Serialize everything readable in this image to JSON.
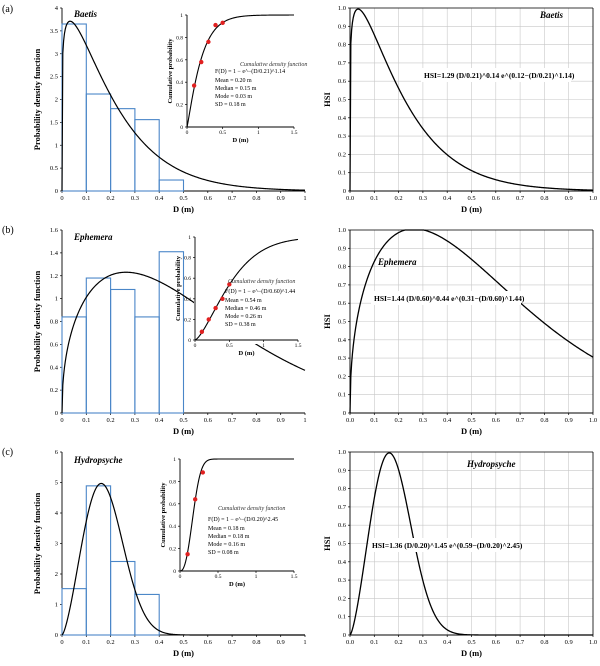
{
  "panels": [
    {
      "label": "(a)",
      "species": "Baetis",
      "pdf": {
        "ylabel": "Probability density function",
        "xlabel": "D (m)",
        "xlim": [
          0,
          1
        ],
        "ylim": [
          0,
          4
        ],
        "xticks": [
          "0",
          "0.1",
          "0.2",
          "0.3",
          "0.4",
          "0.5",
          "0.6",
          "0.7",
          "0.8",
          "0.9",
          "1"
        ],
        "yticks": [
          "0",
          "0.5",
          "1",
          "1.5",
          "2",
          "2.5",
          "3",
          "3.5",
          "4"
        ]
      },
      "inset": {
        "ylabel": "Cumulative probability",
        "xlabel": "D (m)",
        "xlim": [
          0,
          1.5
        ],
        "ylim": [
          0,
          1
        ],
        "xticks": [
          "0",
          "0.5",
          "1",
          "1.5"
        ],
        "yticks": [
          "0",
          "0.2",
          "0.4",
          "0.6",
          "0.8",
          "1"
        ],
        "title": "Cumulative density function",
        "formula": "F(D) = 1 − e^−(D/0.21)^1.14",
        "stats": [
          "Mean = 0.20 m",
          "Median = 0.15 m",
          "Mode = 0.03 m",
          "SD = 0.18 m"
        ]
      },
      "hsi": {
        "ylabel": "HSI",
        "xlabel": "D (m)",
        "xlim": [
          0,
          1
        ],
        "ylim": [
          0,
          1
        ],
        "xticks": [
          "0.0",
          "0.1",
          "0.2",
          "0.3",
          "0.4",
          "0.5",
          "0.6",
          "0.7",
          "0.8",
          "0.9",
          "1.0"
        ],
        "yticks": [
          "0",
          "0.1",
          "0.2",
          "0.3",
          "0.4",
          "0.5",
          "0.6",
          "0.7",
          "0.8",
          "0.9",
          "1.0"
        ],
        "equation": "HSI=1.29 (D/0.21)^0.14 e^(0.12−(D/0.21)^1.14)"
      }
    },
    {
      "label": "(b)",
      "species": "Ephemera",
      "pdf": {
        "ylabel": "Probability density function",
        "xlabel": "D (m)",
        "xlim": [
          0,
          1
        ],
        "ylim": [
          0,
          1.6
        ],
        "xticks": [
          "0",
          "0.1",
          "0.2",
          "0.3",
          "0.4",
          "0.5",
          "0.6",
          "0.7",
          "0.8",
          "0.9",
          "1"
        ],
        "yticks": [
          "0",
          "0.2",
          "0.4",
          "0.6",
          "0.8",
          "1",
          "1.2",
          "1.4",
          "1.6"
        ]
      },
      "inset": {
        "ylabel": "Cumulative probability",
        "xlabel": "D (m)",
        "xlim": [
          0,
          1.5
        ],
        "ylim": [
          0,
          1
        ],
        "xticks": [
          "0",
          "0.5",
          "1",
          "1.5"
        ],
        "yticks": [
          "0",
          "0.2",
          "0.4",
          "0.6",
          "0.8",
          "1"
        ],
        "title": "Cumulative density function",
        "formula": "F(D) = 1 − e^−(D/0.60)^1.44",
        "stats": [
          "Mean = 0.54 m",
          "Median = 0.46 m",
          "Mode = 0.26 m",
          "SD = 0.38 m"
        ]
      },
      "hsi": {
        "ylabel": "HSI",
        "xlabel": "D (m)",
        "xlim": [
          0,
          1
        ],
        "ylim": [
          0,
          1
        ],
        "xticks": [
          "0.0",
          "0.1",
          "0.2",
          "0.3",
          "0.4",
          "0.5",
          "0.6",
          "0.7",
          "0.8",
          "0.9",
          "1.0"
        ],
        "yticks": [
          "0",
          "0.1",
          "0.2",
          "0.3",
          "0.4",
          "0.5",
          "0.6",
          "0.7",
          "0.8",
          "0.9",
          "1.0"
        ],
        "equation": "HSI=1.44 (D/0.60)^0.44 e^(0.31−(D/0.60)^1.44)"
      }
    },
    {
      "label": "(c)",
      "species": "Hydropsyche",
      "pdf": {
        "ylabel": "Probability density function",
        "xlabel": "D (m)",
        "xlim": [
          0,
          1
        ],
        "ylim": [
          0,
          6
        ],
        "xticks": [
          "0",
          "0.1",
          "0.2",
          "0.3",
          "0.4",
          "0.5",
          "0.6",
          "0.7",
          "0.8",
          "0.9",
          "1"
        ],
        "yticks": [
          "0",
          "1",
          "2",
          "3",
          "4",
          "5",
          "6"
        ]
      },
      "inset": {
        "ylabel": "Cumulative probability",
        "xlabel": "D (m)",
        "xlim": [
          0,
          1.5
        ],
        "ylim": [
          0,
          1
        ],
        "xticks": [
          "0",
          "0.5",
          "1",
          "1.5"
        ],
        "yticks": [
          "0",
          "0.2",
          "0.4",
          "0.6",
          "0.8",
          "1"
        ],
        "title": "Cumulative density function",
        "formula": "F(D) = 1 − e^−(D/0.20)^2.45",
        "stats": [
          "Mean = 0.18 m",
          "Median = 0.18 m",
          "Mode = 0.16 m",
          "SD = 0.08 m"
        ]
      },
      "hsi": {
        "ylabel": "HSI",
        "xlabel": "D (m)",
        "xlim": [
          0,
          1
        ],
        "ylim": [
          0,
          1
        ],
        "xticks": [
          "0.0",
          "0.1",
          "0.2",
          "0.3",
          "0.4",
          "0.5",
          "0.6",
          "0.7",
          "0.8",
          "0.9",
          "1.0"
        ],
        "yticks": [
          "0",
          "0.1",
          "0.2",
          "0.3",
          "0.4",
          "0.5",
          "0.6",
          "0.7",
          "0.8",
          "0.9",
          "1.0"
        ],
        "equation": "HSI=1.36 (D/0.20)^1.45 e^(0.59−(D/0.20)^2.45)"
      }
    }
  ],
  "chart_data": [
    {
      "type": "bar",
      "title": "Baetis",
      "xlabel": "D (m)",
      "ylabel": "Probability density function",
      "xlim": [
        0,
        1
      ],
      "ylim": [
        0,
        4
      ],
      "bins": [
        [
          0,
          0.1
        ],
        [
          0.1,
          0.2
        ],
        [
          0.2,
          0.3
        ],
        [
          0.3,
          0.4
        ],
        [
          0.4,
          0.5
        ]
      ],
      "values": [
        3.65,
        2.12,
        1.8,
        1.56,
        0.24
      ],
      "fit": {
        "distribution": "Weibull",
        "scale": 0.21,
        "shape": 1.14
      },
      "grid": false
    },
    {
      "type": "scatter",
      "title": "Cumulative density function",
      "xlabel": "D (m)",
      "ylabel": "Cumulative probability",
      "xlim": [
        0,
        1.5
      ],
      "ylim": [
        0,
        1
      ],
      "x": [
        0.1,
        0.2,
        0.3,
        0.4,
        0.5
      ],
      "y": [
        0.37,
        0.58,
        0.76,
        0.91,
        0.93
      ],
      "fit": {
        "distribution": "Weibull",
        "scale": 0.21,
        "shape": 1.14
      },
      "grid": false
    },
    {
      "type": "line",
      "title": "Baetis",
      "xlabel": "D (m)",
      "ylabel": "HSI",
      "xlim": [
        0,
        1
      ],
      "ylim": [
        0,
        1
      ],
      "function": {
        "a": 1.29,
        "scale": 0.21,
        "p": 0.14,
        "c": 0.12,
        "q": 1.14
      },
      "grid": true
    },
    {
      "type": "bar",
      "title": "Ephemera",
      "xlabel": "D (m)",
      "ylabel": "Probability density function",
      "xlim": [
        0,
        1
      ],
      "ylim": [
        0,
        1.6
      ],
      "bins": [
        [
          0,
          0.1
        ],
        [
          0.1,
          0.2
        ],
        [
          0.2,
          0.3
        ],
        [
          0.3,
          0.4
        ],
        [
          0.4,
          0.5
        ]
      ],
      "values": [
        0.84,
        1.18,
        1.08,
        0.84,
        1.41
      ],
      "fit": {
        "distribution": "Weibull",
        "scale": 0.6,
        "shape": 1.44
      },
      "grid": false
    },
    {
      "type": "scatter",
      "title": "Cumulative density function",
      "xlabel": "D (m)",
      "ylabel": "Cumulative probability",
      "xlim": [
        0,
        1.5
      ],
      "ylim": [
        0,
        1
      ],
      "x": [
        0.1,
        0.2,
        0.3,
        0.4,
        0.5
      ],
      "y": [
        0.08,
        0.2,
        0.31,
        0.4,
        0.54
      ],
      "fit": {
        "distribution": "Weibull",
        "scale": 0.6,
        "shape": 1.44
      },
      "grid": false
    },
    {
      "type": "line",
      "title": "Ephemera",
      "xlabel": "D (m)",
      "ylabel": "HSI",
      "xlim": [
        0,
        1
      ],
      "ylim": [
        0,
        1
      ],
      "function": {
        "a": 1.44,
        "scale": 0.6,
        "p": 0.44,
        "c": 0.31,
        "q": 1.44
      },
      "grid": true
    },
    {
      "type": "bar",
      "title": "Hydropsyche",
      "xlabel": "D (m)",
      "ylabel": "Probability density function",
      "xlim": [
        0,
        1
      ],
      "ylim": [
        0,
        6
      ],
      "bins": [
        [
          0,
          0.1
        ],
        [
          0.1,
          0.2
        ],
        [
          0.2,
          0.3
        ],
        [
          0.3,
          0.4
        ]
      ],
      "values": [
        1.52,
        4.89,
        2.41,
        1.33
      ],
      "fit": {
        "distribution": "Weibull",
        "scale": 0.2,
        "shape": 2.45
      },
      "grid": false
    },
    {
      "type": "scatter",
      "title": "Cumulative density function",
      "xlabel": "D (m)",
      "ylabel": "Cumulative probability",
      "xlim": [
        0,
        1.5
      ],
      "ylim": [
        0,
        1
      ],
      "x": [
        0.1,
        0.2,
        0.3
      ],
      "y": [
        0.15,
        0.64,
        0.88
      ],
      "fit": {
        "distribution": "Weibull",
        "scale": 0.2,
        "shape": 2.45
      },
      "grid": false
    },
    {
      "type": "line",
      "title": "Hydropsyche",
      "xlabel": "D (m)",
      "ylabel": "HSI",
      "xlim": [
        0,
        1
      ],
      "ylim": [
        0,
        1
      ],
      "function": {
        "a": 1.36,
        "scale": 0.2,
        "p": 1.45,
        "c": 0.59,
        "q": 2.45
      },
      "grid": true
    }
  ],
  "colors": {
    "bar_outline": "#4a86c8",
    "curve": "#000000",
    "points": "#e02020",
    "grid": "#c8c8c8",
    "axis": "#000000"
  }
}
